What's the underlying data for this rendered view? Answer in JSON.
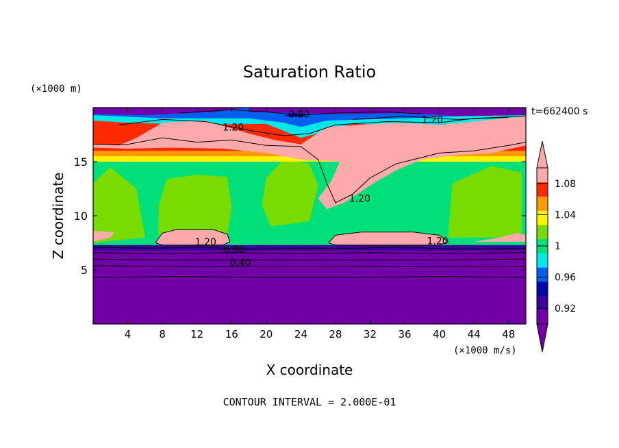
{
  "chart_data": {
    "type": "heatmap",
    "title": "Saturation Ratio",
    "xlabel": "X coordinate",
    "ylabel": "Z coordinate",
    "x_unit": "(×1000 m/s)",
    "y_unit": "(×1000 m)",
    "time_label": "t=662400 s",
    "footer": "CONTOUR INTERVAL = 2.000E-01",
    "xlim": [
      0,
      50
    ],
    "ylim": [
      0,
      20
    ],
    "x_ticks": [
      4,
      8,
      12,
      16,
      20,
      24,
      28,
      32,
      36,
      40,
      44,
      48
    ],
    "y_ticks": [
      5,
      10,
      15
    ],
    "colorbar": {
      "levels": [
        0.9,
        0.92,
        0.94,
        0.96,
        0.98,
        1.0,
        1.02,
        1.04,
        1.06,
        1.08,
        1.1
      ],
      "tick_labels": [
        "0.92",
        "0.96",
        "1",
        "1.04",
        "1.08"
      ],
      "tick_values": [
        0.92,
        0.96,
        1.0,
        1.04,
        1.08
      ],
      "colors": [
        "#7100a8",
        "#3d009a",
        "#0008a8",
        "#0060f0",
        "#00e8e8",
        "#00e07a",
        "#78dc00",
        "#fff200",
        "#ff9a00",
        "#ff2a00",
        "#ffaaaa"
      ],
      "extend": "both"
    },
    "contour_labels": [
      {
        "text": "0.80",
        "x": 23.8,
        "y": 19.4
      },
      {
        "text": "1.20",
        "x": 16.2,
        "y": 18.2
      },
      {
        "text": "1.20",
        "x": 39.2,
        "y": 18.9
      },
      {
        "text": "1.20",
        "x": 30.8,
        "y": 11.6
      },
      {
        "text": "1.20",
        "x": 13.0,
        "y": 7.6
      },
      {
        "text": "0.80",
        "x": 16.3,
        "y": 6.9
      },
      {
        "text": "0.40",
        "x": 17.0,
        "y": 5.7
      },
      {
        "text": "1.20",
        "x": 39.8,
        "y": 7.7
      }
    ],
    "regions": {
      "base_layer": {
        "z_range": [
          0,
          7
        ],
        "value": "below 0.92"
      },
      "middle_layer": {
        "z_range": [
          7,
          15.5
        ],
        "value": "about 0.98-1.0"
      },
      "upper_layer": {
        "z_range": [
          15.5,
          19
        ],
        "value": "above 1.1"
      },
      "top_layer": {
        "z_range": [
          19,
          20
        ],
        "value": "0.8 and below"
      }
    }
  }
}
